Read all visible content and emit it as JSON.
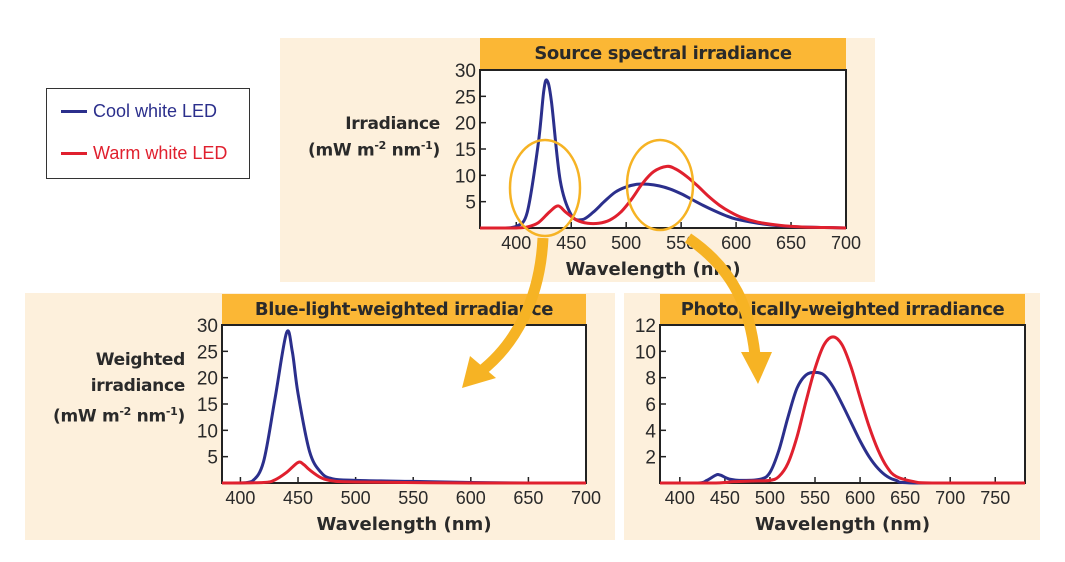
{
  "legend": {
    "items": [
      {
        "label": "Cool white LED",
        "color": "#2b2f8c"
      },
      {
        "label": "Warm white LED",
        "color": "#e0202e"
      }
    ]
  },
  "colors": {
    "panel_bg": "#fdf0dc",
    "title_bar": "#fbb735",
    "highlight": "#f6b324"
  },
  "chart_data": [
    {
      "type": "line",
      "title": "Source spectral irradiance",
      "xlabel": "Wavelength (nm)",
      "ylabel": {
        "line1": "Irradiance",
        "line2": "",
        "unit_a": "(mW m",
        "sup_a": "-2",
        "unit_b": " nm",
        "sup_b": "-1",
        "unit_c": ")"
      },
      "xlim": [
        367,
        700
      ],
      "ylim": [
        0,
        30
      ],
      "xticks": [
        400,
        450,
        500,
        550,
        600,
        650,
        700
      ],
      "yticks": [
        5,
        10,
        15,
        20,
        25,
        30
      ],
      "highlights": [
        "ellipse around blue peak region (~410-470 nm)",
        "ellipse around green peak region (~510-570 nm)"
      ],
      "series": [
        {
          "name": "Cool white LED",
          "x": [
            367,
            390,
            400,
            410,
            420,
            425,
            428,
            432,
            440,
            450,
            460,
            470,
            480,
            490,
            500,
            510,
            520,
            530,
            540,
            550,
            560,
            570,
            580,
            590,
            600,
            620,
            640,
            660,
            680,
            700
          ],
          "y": [
            0,
            0,
            0.3,
            3,
            16,
            26,
            28,
            24,
            9,
            2.5,
            1.6,
            3,
            5,
            6.8,
            7.8,
            8.3,
            8.3,
            8.0,
            7.4,
            6.5,
            5.4,
            4.3,
            3.3,
            2.4,
            1.7,
            0.9,
            0.4,
            0.2,
            0.1,
            0
          ]
        },
        {
          "name": "Warm white LED",
          "x": [
            367,
            390,
            400,
            410,
            420,
            430,
            438,
            445,
            455,
            465,
            475,
            485,
            495,
            505,
            515,
            525,
            537,
            545,
            555,
            565,
            575,
            585,
            595,
            605,
            620,
            640,
            660,
            680,
            700
          ],
          "y": [
            0,
            0,
            0,
            0.2,
            1,
            3,
            4.2,
            3,
            1.5,
            0.9,
            0.9,
            1.5,
            3,
            5.5,
            8.5,
            10.7,
            11.7,
            11.2,
            9.8,
            8,
            6,
            4.3,
            3,
            2,
            1.1,
            0.5,
            0.2,
            0.1,
            0
          ]
        }
      ]
    },
    {
      "type": "line",
      "title": "Blue-light-weighted irradiance",
      "xlabel": "Wavelength (nm)",
      "ylabel": {
        "line1": "Weighted",
        "line2": "irradiance",
        "unit_a": "(mW m",
        "sup_a": "-2",
        "unit_b": " nm",
        "sup_b": "-1",
        "unit_c": ")"
      },
      "xlim": [
        384,
        700
      ],
      "ylim": [
        0,
        30
      ],
      "xticks": [
        400,
        450,
        500,
        550,
        600,
        650,
        700
      ],
      "yticks": [
        5,
        10,
        15,
        20,
        25,
        30
      ],
      "series": [
        {
          "name": "Cool white LED",
          "x": [
            384,
            400,
            410,
            420,
            430,
            440,
            445,
            450,
            460,
            470,
            480,
            500,
            550,
            600,
            650,
            700
          ],
          "y": [
            0,
            0,
            0.3,
            4,
            16,
            28.5,
            25,
            17,
            6,
            2,
            0.8,
            0.5,
            0.3,
            0.1,
            0,
            0
          ]
        },
        {
          "name": "Warm white LED",
          "x": [
            384,
            420,
            430,
            440,
            450,
            455,
            460,
            470,
            480,
            500,
            600,
            700
          ],
          "y": [
            0,
            0.1,
            0.6,
            2,
            3.9,
            3.5,
            2.5,
            1,
            0.4,
            0.2,
            0,
            0
          ]
        }
      ]
    },
    {
      "type": "line",
      "title": "Photopically-weighted irradiance",
      "xlabel": "Wavelength (nm)",
      "xlim": [
        378,
        783
      ],
      "ylim": [
        0,
        12
      ],
      "xticks": [
        400,
        450,
        500,
        550,
        600,
        650,
        700,
        750
      ],
      "yticks": [
        2,
        4,
        6,
        8,
        10,
        12
      ],
      "series": [
        {
          "name": "Cool white LED",
          "x": [
            378,
            420,
            430,
            440,
            445,
            455,
            470,
            490,
            500,
            510,
            520,
            530,
            540,
            550,
            560,
            570,
            580,
            590,
            600,
            610,
            620,
            630,
            640,
            660,
            783
          ],
          "y": [
            0,
            0,
            0.2,
            0.6,
            0.6,
            0.3,
            0.2,
            0.3,
            0.8,
            2.5,
            5,
            7.2,
            8.2,
            8.4,
            8.2,
            7.3,
            6.0,
            4.6,
            3.2,
            2.0,
            1.1,
            0.5,
            0.2,
            0,
            0
          ]
        },
        {
          "name": "Warm white LED",
          "x": [
            378,
            440,
            460,
            480,
            500,
            510,
            520,
            530,
            540,
            550,
            560,
            570,
            580,
            590,
            600,
            610,
            620,
            630,
            640,
            660,
            680,
            783
          ],
          "y": [
            0,
            0,
            0.1,
            0.15,
            0.2,
            0.5,
            1.5,
            3.5,
            6.2,
            8.7,
            10.5,
            11.1,
            10.5,
            8.8,
            6.5,
            4.3,
            2.5,
            1.2,
            0.5,
            0.1,
            0,
            0
          ]
        }
      ]
    }
  ]
}
